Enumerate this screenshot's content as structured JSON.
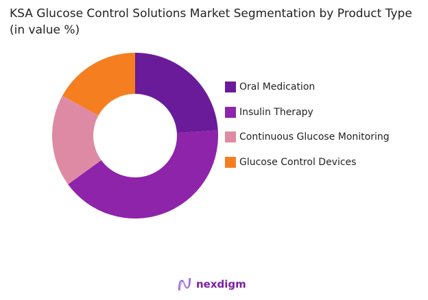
{
  "chart_data": {
    "type": "pie",
    "title": "KSA Glucose Control Solutions Market Segmentation by Product Type (in value %)",
    "categories": [
      "Oral Medication",
      "Insulin Therapy",
      "Continuous Glucose Monitoring",
      "Glucose Control Devices"
    ],
    "values": [
      24,
      41,
      18,
      17
    ],
    "colors": [
      "#6a1b9a",
      "#8e24aa",
      "#df8aa4",
      "#f57f20"
    ],
    "donut": true,
    "legend_placement": "right"
  },
  "branding": {
    "logo_text": "nexdigm"
  }
}
